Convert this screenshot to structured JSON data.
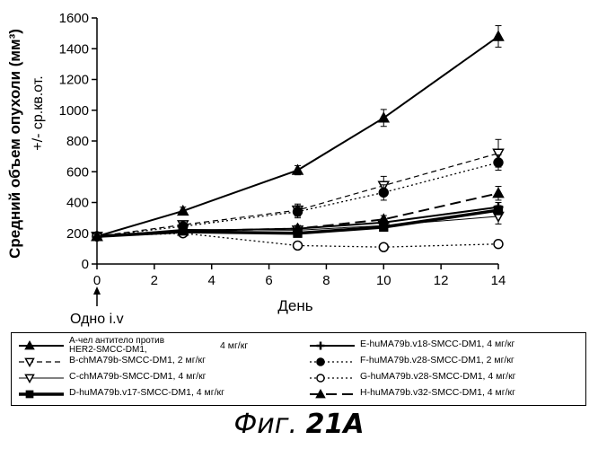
{
  "chart_data": {
    "type": "line",
    "title": "",
    "xlabel": "День",
    "ylabel": "Средний объем опухоли (мм³)",
    "ylabel2": "+/- ср.кв.от.",
    "xlim": [
      0,
      14
    ],
    "ylim": [
      0,
      1600
    ],
    "xticks": [
      0,
      2,
      4,
      6,
      8,
      10,
      12,
      14
    ],
    "yticks": [
      0,
      200,
      400,
      600,
      800,
      1000,
      1200,
      1400,
      1600
    ],
    "annotation": "Одно i.v",
    "x": [
      0,
      3,
      7,
      10,
      14
    ],
    "series": [
      {
        "name": "A",
        "legend": "A-чел антитело против",
        "legend2": "HER2-SMCC-DM1,",
        "dose": "4 мг/кг",
        "values": [
          180,
          345,
          610,
          950,
          1480
        ],
        "err": [
          20,
          25,
          30,
          55,
          70
        ],
        "marker": "tri-up-filled",
        "dash": "solid",
        "width": 2
      },
      {
        "name": "B",
        "legend": "B-chMA79b-SMCC-DM1, 2 мг/кг",
        "values": [
          180,
          255,
          350,
          510,
          720
        ],
        "err": [
          20,
          20,
          40,
          60,
          90
        ],
        "marker": "tri-down-open",
        "dash": "dashed",
        "width": 1.2
      },
      {
        "name": "C",
        "legend": "C-chMA79b-SMCC-DM1, 4 мг/кг",
        "values": [
          180,
          225,
          220,
          250,
          310
        ],
        "err": [
          15,
          20,
          25,
          30,
          50
        ],
        "marker": "tri-down-open",
        "dash": "solid",
        "width": 1
      },
      {
        "name": "D",
        "legend": "D-huMA79b.v17-SMCC-DM1, 4 мг/кг",
        "values": [
          180,
          210,
          200,
          240,
          350
        ],
        "err": [
          15,
          15,
          20,
          20,
          30
        ],
        "marker": "square-filled",
        "dash": "solid",
        "width": 3.5
      },
      {
        "name": "E",
        "legend": "E-huMA79b.v18-SMCC-DM1, 4 мг/кг",
        "values": [
          180,
          215,
          230,
          270,
          370
        ],
        "err": [
          15,
          15,
          20,
          25,
          30
        ],
        "marker": "cross",
        "dash": "solid",
        "width": 2
      },
      {
        "name": "F",
        "legend": "F-huMA79b.v28-SMCC-DM1, 2 мг/кг",
        "values": [
          180,
          245,
          340,
          465,
          660
        ],
        "err": [
          20,
          20,
          40,
          50,
          50
        ],
        "marker": "circle-filled",
        "dash": "dotted",
        "width": 1.3
      },
      {
        "name": "G",
        "legend": "G-huMA79b.v28-SMCC-DM1, 4 мг/кг",
        "values": [
          180,
          200,
          120,
          110,
          130
        ],
        "err": [
          15,
          15,
          20,
          20,
          25
        ],
        "marker": "circle-open",
        "dash": "dotted",
        "width": 1.3
      },
      {
        "name": "H",
        "legend": "H-huMA79b.v32-SMCC-DM1, 4 мг/кг",
        "values": [
          180,
          215,
          230,
          290,
          460
        ],
        "err": [
          15,
          15,
          20,
          25,
          45
        ],
        "marker": "tri-up-filled",
        "dash": "longdash",
        "width": 2
      }
    ]
  },
  "caption": {
    "prefix": "Фиг. ",
    "number": "21A"
  }
}
